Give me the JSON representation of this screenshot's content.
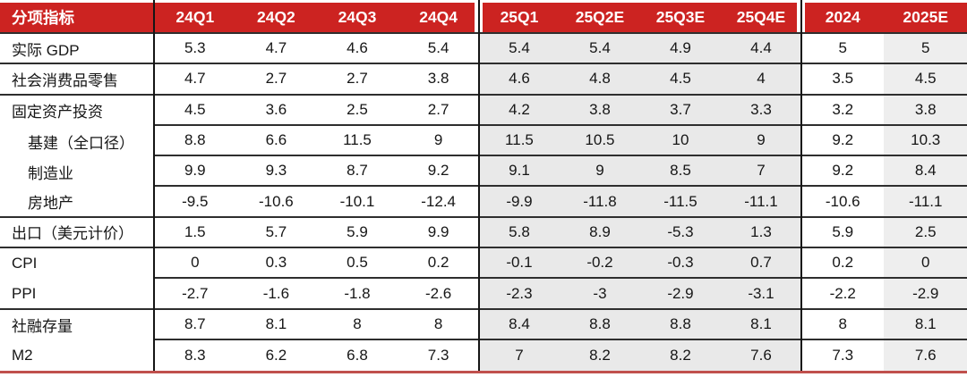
{
  "colors": {
    "header_bg": "#cc2321",
    "header_text": "#ffffff",
    "row_line": "#2e2e2e",
    "bottom_rule": "#c0504d",
    "forecast_column_bg": "#e9e9e9",
    "col_2025e_bg": "#eeeeee",
    "body_text": "#161616"
  },
  "chart_data": {
    "type": "table",
    "title": "",
    "columns": [
      "分项指标",
      "24Q1",
      "24Q2",
      "24Q3",
      "24Q4",
      "25Q1",
      "25Q2E",
      "25Q3E",
      "25Q4E",
      "2024",
      "2025E"
    ],
    "rows": [
      {
        "label": "实际 GDP",
        "indent": false,
        "group_end": true,
        "values": [
          "5.3",
          "4.7",
          "4.6",
          "5.4",
          "5.4",
          "5.4",
          "4.9",
          "4.4",
          "5",
          "5"
        ]
      },
      {
        "label": "社会消费品零售",
        "indent": false,
        "group_end": true,
        "values": [
          "4.7",
          "2.7",
          "2.7",
          "3.8",
          "4.6",
          "4.8",
          "4.5",
          "4",
          "3.5",
          "4.5"
        ]
      },
      {
        "label": "固定资产投资",
        "indent": false,
        "group_end": false,
        "values": [
          "4.5",
          "3.6",
          "2.5",
          "2.7",
          "4.2",
          "3.8",
          "3.7",
          "3.3",
          "3.2",
          "3.8"
        ]
      },
      {
        "label": "基建（全口径）",
        "indent": true,
        "group_end": false,
        "values": [
          "8.8",
          "6.6",
          "11.5",
          "9",
          "11.5",
          "10.5",
          "10",
          "9",
          "9.2",
          "10.3"
        ]
      },
      {
        "label": "制造业",
        "indent": true,
        "group_end": false,
        "values": [
          "9.9",
          "9.3",
          "8.7",
          "9.2",
          "9.1",
          "9",
          "8.5",
          "7",
          "9.2",
          "8.4"
        ]
      },
      {
        "label": "房地产",
        "indent": true,
        "group_end": true,
        "values": [
          "-9.5",
          "-10.6",
          "-10.1",
          "-12.4",
          "-9.9",
          "-11.8",
          "-11.5",
          "-11.1",
          "-10.6",
          "-11.1"
        ]
      },
      {
        "label": "出口（美元计价）",
        "indent": false,
        "group_end": true,
        "values": [
          "1.5",
          "5.7",
          "5.9",
          "9.9",
          "5.8",
          "8.9",
          "-5.3",
          "1.3",
          "5.9",
          "2.5"
        ]
      },
      {
        "label": "CPI",
        "indent": false,
        "group_end": false,
        "values": [
          "0",
          "0.3",
          "0.5",
          "0.2",
          "-0.1",
          "-0.2",
          "-0.3",
          "0.7",
          "0.2",
          "0"
        ]
      },
      {
        "label": "PPI",
        "indent": false,
        "group_end": true,
        "values": [
          "-2.7",
          "-1.6",
          "-1.8",
          "-2.6",
          "-2.3",
          "-3",
          "-2.9",
          "-3.1",
          "-2.2",
          "-2.9"
        ]
      },
      {
        "label": "社融存量",
        "indent": false,
        "group_end": false,
        "values": [
          "8.7",
          "8.1",
          "8",
          "8",
          "8.4",
          "8.8",
          "8.8",
          "8.1",
          "8",
          "8.1"
        ]
      },
      {
        "label": "M2",
        "indent": false,
        "group_end": false,
        "values": [
          "8.3",
          "6.2",
          "6.8",
          "7.3",
          "7",
          "8.2",
          "8.2",
          "7.6",
          "7.3",
          "7.6"
        ]
      }
    ]
  }
}
